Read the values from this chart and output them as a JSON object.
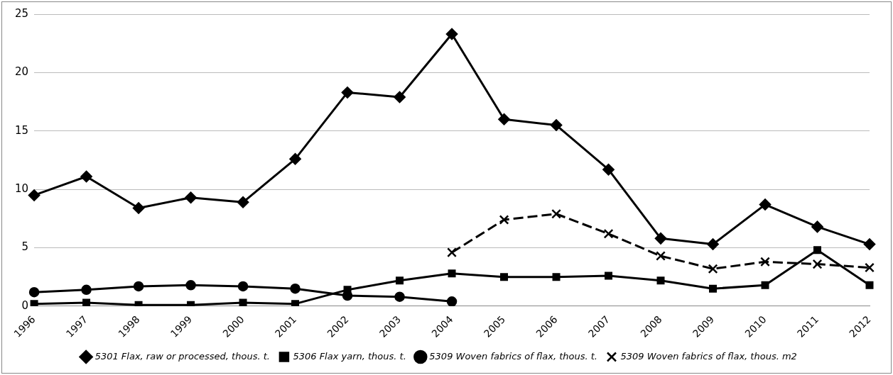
{
  "chart_data": {
    "type": "line",
    "categories": [
      "1996",
      "1997",
      "1998",
      "1999",
      "2000",
      "2001",
      "2002",
      "2003",
      "2004",
      "2005",
      "2006",
      "2007",
      "2008",
      "2009",
      "2010",
      "2011",
      "2012"
    ],
    "ylim": [
      0,
      25
    ],
    "yticks": [
      0,
      5,
      10,
      15,
      20,
      25
    ],
    "grid": "y",
    "legend": "bottom",
    "series": [
      {
        "name": "5301 Flax, raw or processed, thous. t.",
        "color": "#000000",
        "marker": "diamond",
        "values": [
          9.5,
          11.1,
          8.4,
          9.3,
          8.9,
          12.6,
          18.3,
          17.9,
          23.3,
          16.0,
          15.5,
          11.7,
          5.8,
          5.3,
          8.7,
          6.8,
          5.3
        ]
      },
      {
        "name": "5306 Flax yarn, thous. t.",
        "color": "#000000",
        "marker": "square",
        "values": [
          0.2,
          0.3,
          0.1,
          0.1,
          0.3,
          0.2,
          1.4,
          2.2,
          2.8,
          2.5,
          2.5,
          2.6,
          2.2,
          1.5,
          1.8,
          4.8,
          1.8
        ]
      },
      {
        "name": "5309 Woven fabrics of flax, thous. t.",
        "color": "#000000",
        "marker": "circle",
        "values": [
          1.2,
          1.4,
          1.7,
          1.8,
          1.7,
          1.5,
          0.9,
          0.8,
          0.4,
          null,
          null,
          null,
          null,
          null,
          null,
          null,
          null
        ]
      },
      {
        "name": "5309 Woven fabrics of flax, thous. m2",
        "color": "#000000",
        "marker": "cross",
        "line_style": "dashed",
        "values": [
          null,
          null,
          null,
          null,
          null,
          null,
          null,
          null,
          4.6,
          7.4,
          7.9,
          6.2,
          4.3,
          3.2,
          3.8,
          3.6,
          3.3
        ]
      }
    ]
  }
}
